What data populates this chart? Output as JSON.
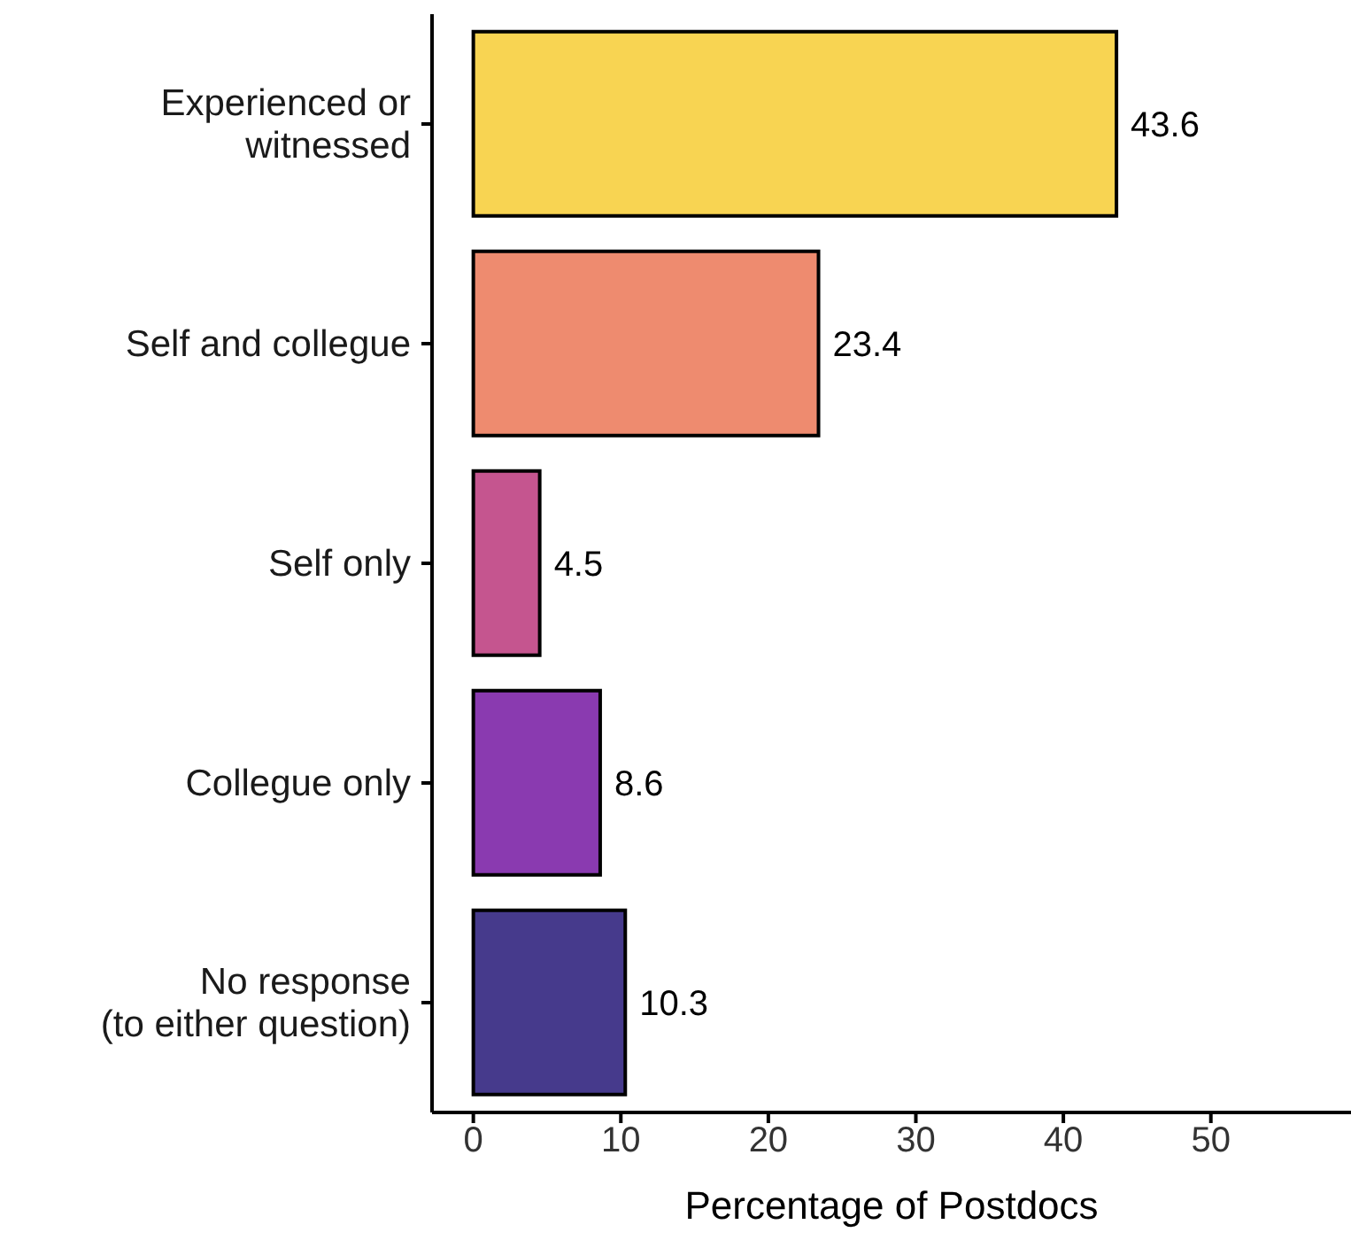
{
  "chart_data": {
    "type": "bar",
    "orientation": "horizontal",
    "xlabel": "Percentage of Postdocs",
    "categories": [
      "Experienced or\nwitnessed",
      "Self and collegue",
      "Self only",
      "Collegue only",
      "No response\n(to either question)"
    ],
    "values": [
      43.6,
      23.4,
      4.5,
      8.6,
      10.3
    ],
    "colors": [
      "#f8d452",
      "#ee8b6f",
      "#c5558f",
      "#8a3ab0",
      "#463a8c"
    ],
    "xlim": [
      -2.8,
      59.5
    ],
    "xticks": [
      0,
      10,
      20,
      30,
      40,
      50
    ],
    "grid": false,
    "legend": false,
    "data_labels": true
  }
}
